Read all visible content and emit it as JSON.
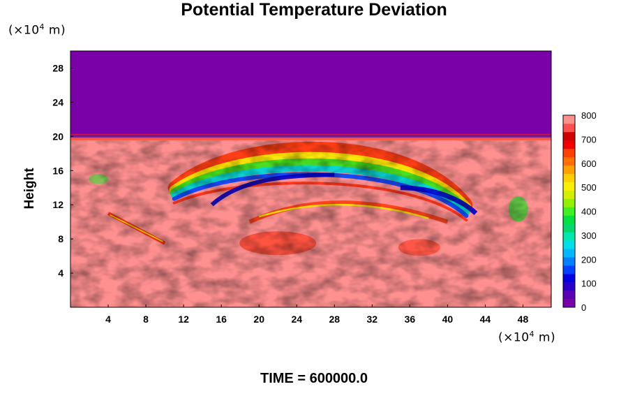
{
  "chart_data": {
    "type": "heatmap",
    "title": "Potential Temperature Deviation",
    "ylabel": "Height",
    "x_unit": {
      "prefix": "(×10",
      "exp": "4",
      "suffix": " m)"
    },
    "y_unit": {
      "prefix": "(×10",
      "exp": "4",
      "suffix": " m)"
    },
    "xlim": [
      0,
      51
    ],
    "ylim": [
      0,
      30
    ],
    "x_ticks": [
      "4",
      "8",
      "12",
      "16",
      "20",
      "24",
      "28",
      "32",
      "36",
      "40",
      "44",
      "48"
    ],
    "y_ticks": [
      "4",
      "8",
      "12",
      "16",
      "20",
      "24",
      "28"
    ],
    "colorbar": {
      "min": 0,
      "max": 800,
      "ticks": [
        "0",
        "100",
        "200",
        "300",
        "400",
        "500",
        "600",
        "700",
        "800"
      ],
      "colors": [
        "#7a00a8",
        "#5a00b4",
        "#2a00c8",
        "#0000e0",
        "#0040ff",
        "#0080ff",
        "#00b8ff",
        "#00e0e8",
        "#00e8b0",
        "#00d870",
        "#00e040",
        "#40f020",
        "#90f000",
        "#d0f000",
        "#f8f000",
        "#ffd000",
        "#ffa000",
        "#ff7000",
        "#ff4000",
        "#f00000",
        "#d00000",
        "#ff5050",
        "#ff9090"
      ]
    },
    "field": {
      "upper_layer": {
        "y_range": [
          20,
          30
        ],
        "value": 0
      },
      "lower_layer": {
        "y_range": [
          0,
          20
        ],
        "value": 800
      }
    },
    "footer": "TIME = 600000.0"
  }
}
